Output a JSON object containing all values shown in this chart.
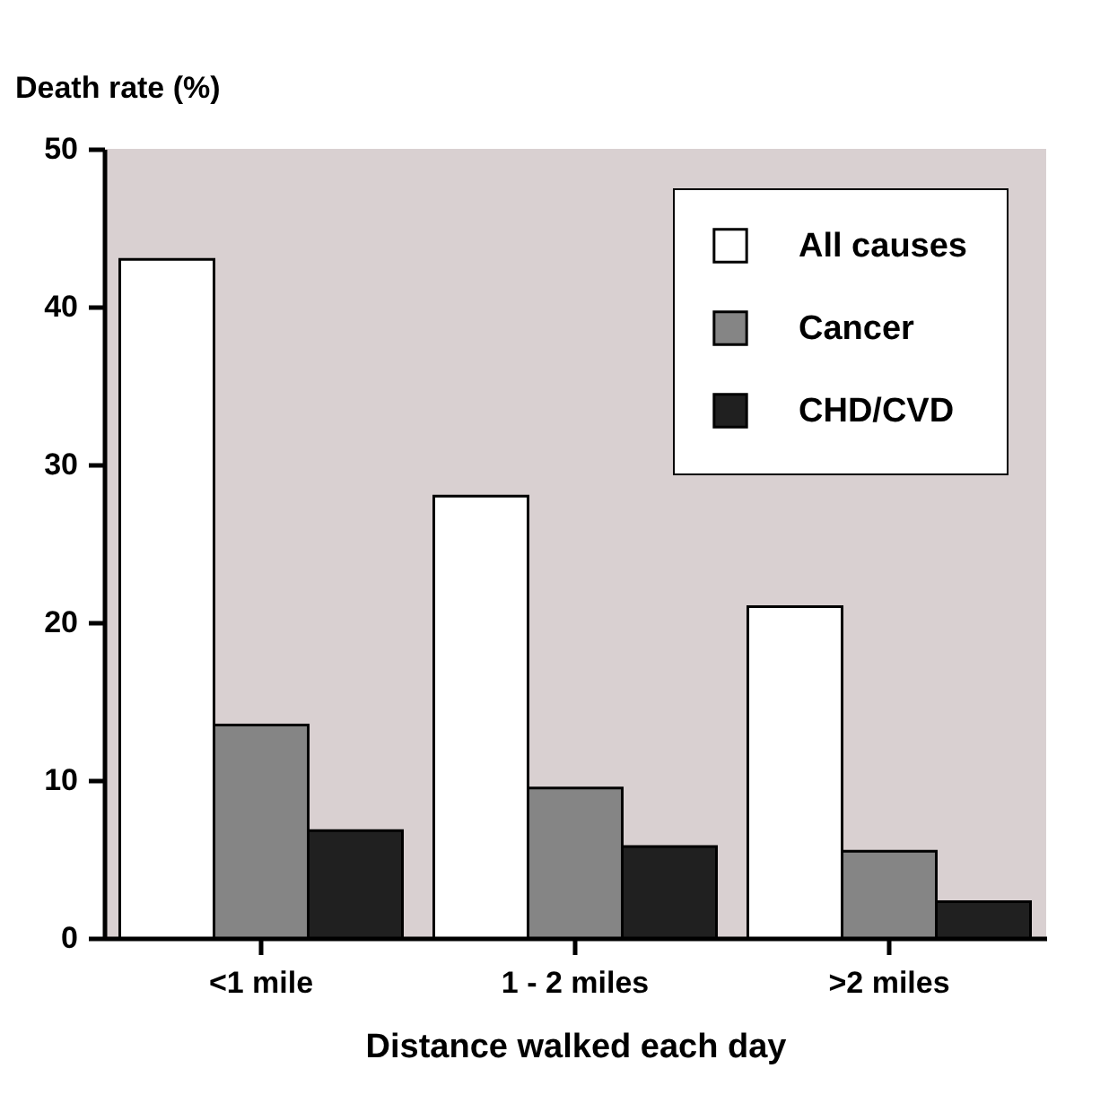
{
  "chart_data": {
    "type": "bar",
    "ylabel": "Death rate   (%)",
    "xlabel": "Distance walked each day",
    "categories": [
      "<1 mile",
      "1 - 2 miles",
      ">2 miles"
    ],
    "series": [
      {
        "name": "All causes",
        "color": "#ffffff",
        "values": [
          43,
          28,
          21
        ]
      },
      {
        "name": "Cancer",
        "color": "#858585",
        "values": [
          13.5,
          9.5,
          5.5
        ]
      },
      {
        "name": "CHD/CVD",
        "color": "#202020",
        "values": [
          6.8,
          5.8,
          2.3
        ]
      }
    ],
    "ylim": [
      0,
      50
    ],
    "yticks": [
      0,
      10,
      20,
      30,
      40,
      50
    ],
    "grid": false,
    "legend": "top right"
  }
}
